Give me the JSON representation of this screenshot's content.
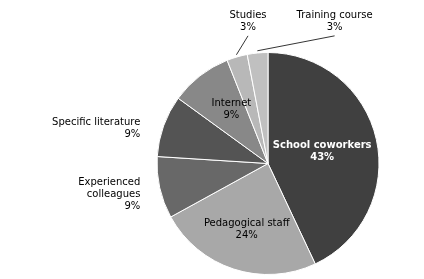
{
  "chart_data": {
    "type": "pie",
    "categories": [
      "School coworkers",
      "Pedagogical staff",
      "Experienced\ncolleagues",
      "Specific literature",
      "Internet",
      "Studies",
      "Training course"
    ],
    "values": [
      43,
      24,
      9,
      9,
      9,
      3,
      3
    ],
    "value_labels": [
      "43%",
      "24%",
      "9%",
      "9%",
      "9%",
      "3%",
      "3%"
    ],
    "colors": [
      "#404040",
      "#a8a8a8",
      "#686868",
      "#545454",
      "#888888",
      "#b8b8b8",
      "#c0c0c0"
    ],
    "data_labels": true
  }
}
